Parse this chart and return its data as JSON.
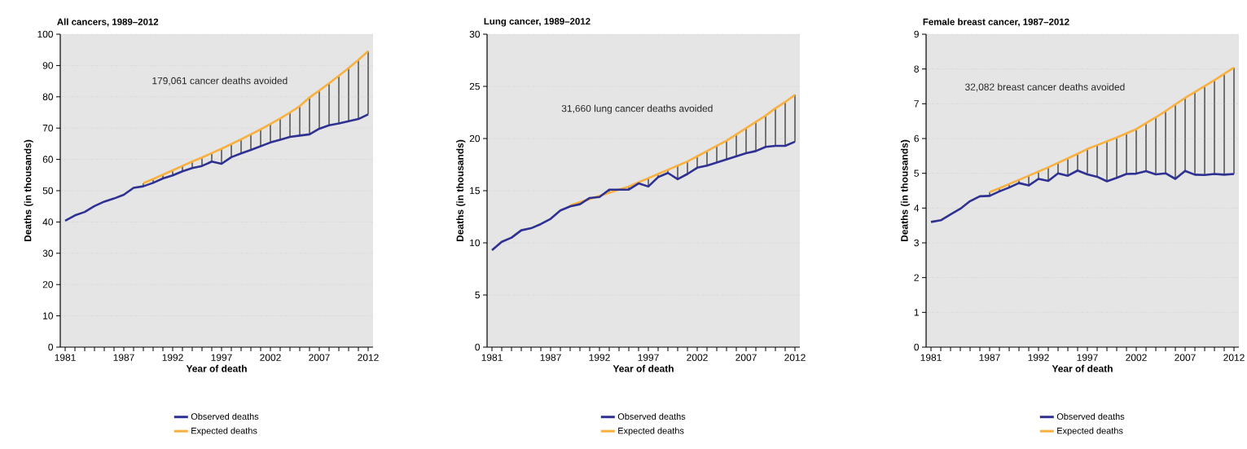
{
  "chart_data": [
    {
      "type": "line",
      "title": "All cancers, 1989–2012",
      "xlabel": "Year of death",
      "ylabel": "Deaths (in thousands)",
      "x": [
        1981,
        1982,
        1983,
        1984,
        1985,
        1986,
        1987,
        1988,
        1989,
        1990,
        1991,
        1992,
        1993,
        1994,
        1995,
        1996,
        1997,
        1998,
        1999,
        2000,
        2001,
        2002,
        2003,
        2004,
        2005,
        2006,
        2007,
        2008,
        2009,
        2010,
        2011,
        2012
      ],
      "series": [
        {
          "name": "Observed deaths",
          "color": "#2e3192",
          "values": [
            40.4,
            42.1,
            43.2,
            45.1,
            46.5,
            47.5,
            48.7,
            50.9,
            51.4,
            52.5,
            53.9,
            54.9,
            56.2,
            57.2,
            57.9,
            59.3,
            58.6,
            60.7,
            61.9,
            63.0,
            64.2,
            65.4,
            66.3,
            67.2,
            67.6,
            68.0,
            69.8,
            70.9,
            71.5,
            72.2,
            72.9,
            74.4
          ]
        },
        {
          "name": "Expected deaths",
          "color": "#f9b03f",
          "values": [
            null,
            null,
            null,
            null,
            null,
            null,
            null,
            null,
            52.4,
            53.7,
            55.1,
            56.5,
            57.9,
            59.3,
            60.6,
            62.0,
            63.4,
            64.9,
            66.4,
            68.0,
            69.6,
            71.3,
            73.1,
            75.0,
            77.0,
            79.8,
            82.0,
            84.3,
            86.7,
            89.2,
            91.8,
            94.6
          ]
        }
      ],
      "annotations": [
        "179,061 cancer deaths avoided"
      ],
      "xlim": [
        1980.5,
        2012.5
      ],
      "ylim": [
        0,
        100
      ],
      "yticks": [
        0,
        10,
        20,
        30,
        40,
        50,
        60,
        70,
        80,
        90,
        100
      ],
      "xticks": [
        1981,
        {
          "value": 1982,
          "label": null
        },
        {
          "value": 1983,
          "label": null
        },
        {
          "value": 1984,
          "label": null
        },
        {
          "value": 1985,
          "label": null
        },
        {
          "value": 1986,
          "label": null
        },
        1987,
        {
          "value": 1988,
          "label": null
        },
        {
          "value": 1989,
          "label": null
        },
        {
          "value": 1990,
          "label": null
        },
        {
          "value": 1991,
          "label": null
        },
        1992,
        {
          "value": 1993,
          "label": null
        },
        {
          "value": 1994,
          "label": null
        },
        {
          "value": 1995,
          "label": null
        },
        {
          "value": 1996,
          "label": null
        },
        1997,
        {
          "value": 1998,
          "label": null
        },
        {
          "value": 1999,
          "label": null
        },
        {
          "value": 2000,
          "label": null
        },
        {
          "value": 2001,
          "label": null
        },
        2002,
        {
          "value": 2003,
          "label": null
        },
        {
          "value": 2004,
          "label": null
        },
        {
          "value": 2005,
          "label": null
        },
        {
          "value": 2006,
          "label": null
        },
        2007,
        {
          "value": 2008,
          "label": null
        },
        {
          "value": 2009,
          "label": null
        },
        {
          "value": 2010,
          "label": null
        },
        {
          "value": 2011,
          "label": null
        },
        2012
      ],
      "grid": "y",
      "legend": "bottom",
      "marker": "none",
      "line_style": "solid"
    },
    {
      "type": "line",
      "title": "Lung cancer, 1989–2012",
      "xlabel": "Year of death",
      "ylabel": "Deaths (in thousands)",
      "x": [
        1981,
        1982,
        1983,
        1984,
        1985,
        1986,
        1987,
        1988,
        1989,
        1990,
        1991,
        1992,
        1993,
        1994,
        1995,
        1996,
        1997,
        1998,
        1999,
        2000,
        2001,
        2002,
        2003,
        2004,
        2005,
        2006,
        2007,
        2008,
        2009,
        2010,
        2011,
        2012
      ],
      "series": [
        {
          "name": "Observed deaths",
          "color": "#2e3192",
          "values": [
            9.3,
            10.1,
            10.5,
            11.2,
            11.4,
            11.8,
            12.3,
            13.1,
            13.5,
            13.7,
            14.3,
            14.4,
            15.1,
            15.1,
            15.1,
            15.7,
            15.4,
            16.3,
            16.7,
            16.1,
            16.6,
            17.2,
            17.4,
            17.7,
            18.0,
            18.3,
            18.6,
            18.8,
            19.2,
            19.3,
            19.3,
            19.7
          ]
        },
        {
          "name": "Expected deaths",
          "color": "#f9b03f",
          "values": [
            null,
            null,
            null,
            null,
            null,
            null,
            null,
            null,
            13.6,
            13.9,
            14.2,
            14.5,
            14.8,
            15.1,
            15.4,
            15.8,
            16.2,
            16.6,
            17.0,
            17.4,
            17.8,
            18.3,
            18.8,
            19.3,
            19.8,
            20.4,
            21.0,
            21.6,
            22.2,
            22.9,
            23.5,
            24.2
          ]
        }
      ],
      "annotations": [
        "31,660 lung cancer deaths avoided"
      ],
      "xlim": [
        1980.5,
        2012.5
      ],
      "ylim": [
        0,
        30
      ],
      "yticks": [
        0,
        5,
        10,
        15,
        20,
        25,
        30
      ],
      "xticks": [
        1981,
        {
          "value": 1982,
          "label": null
        },
        {
          "value": 1983,
          "label": null
        },
        {
          "value": 1984,
          "label": null
        },
        {
          "value": 1985,
          "label": null
        },
        {
          "value": 1986,
          "label": null
        },
        1987,
        {
          "value": 1988,
          "label": null
        },
        {
          "value": 1989,
          "label": null
        },
        {
          "value": 1990,
          "label": null
        },
        {
          "value": 1991,
          "label": null
        },
        1992,
        {
          "value": 1993,
          "label": null
        },
        {
          "value": 1994,
          "label": null
        },
        {
          "value": 1995,
          "label": null
        },
        {
          "value": 1996,
          "label": null
        },
        1997,
        {
          "value": 1998,
          "label": null
        },
        {
          "value": 1999,
          "label": null
        },
        {
          "value": 2000,
          "label": null
        },
        {
          "value": 2001,
          "label": null
        },
        2002,
        {
          "value": 2003,
          "label": null
        },
        {
          "value": 2004,
          "label": null
        },
        {
          "value": 2005,
          "label": null
        },
        {
          "value": 2006,
          "label": null
        },
        2007,
        {
          "value": 2008,
          "label": null
        },
        {
          "value": 2009,
          "label": null
        },
        {
          "value": 2010,
          "label": null
        },
        {
          "value": 2011,
          "label": null
        },
        2012
      ],
      "grid": "y",
      "legend": "bottom",
      "marker": "none",
      "line_style": "solid"
    },
    {
      "type": "line",
      "title": "Female breast cancer, 1987–2012",
      "xlabel": "Year of death",
      "ylabel": "Deaths (in thousands)",
      "x": [
        1981,
        1982,
        1983,
        1984,
        1985,
        1986,
        1987,
        1988,
        1989,
        1990,
        1991,
        1992,
        1993,
        1994,
        1995,
        1996,
        1997,
        1998,
        1999,
        2000,
        2001,
        2002,
        2003,
        2004,
        2005,
        2006,
        2007,
        2008,
        2009,
        2010,
        2011,
        2012
      ],
      "series": [
        {
          "name": "Observed deaths",
          "color": "#2e3192",
          "values": [
            3.6,
            3.65,
            3.82,
            3.98,
            4.2,
            4.34,
            4.35,
            4.48,
            4.59,
            4.72,
            4.65,
            4.84,
            4.78,
            5.0,
            4.93,
            5.08,
            4.97,
            4.9,
            4.77,
            4.87,
            4.98,
            4.99,
            5.06,
            4.97,
            5.0,
            4.84,
            5.07,
            4.96,
            4.95,
            4.98,
            4.96,
            4.98
          ]
        },
        {
          "name": "Expected deaths",
          "color": "#f9b03f",
          "values": [
            null,
            null,
            null,
            null,
            null,
            null,
            4.46,
            4.57,
            4.69,
            4.81,
            4.93,
            5.05,
            5.17,
            5.3,
            5.43,
            5.56,
            5.7,
            5.81,
            5.92,
            6.03,
            6.15,
            6.27,
            6.44,
            6.61,
            6.79,
            6.98,
            7.17,
            7.34,
            7.51,
            7.68,
            7.86,
            8.04
          ]
        }
      ],
      "annotations": [
        "32,082 breast cancer deaths avoided"
      ],
      "xlim": [
        1980.5,
        2012.5
      ],
      "ylim": [
        0,
        9
      ],
      "yticks": [
        0,
        1,
        2,
        3,
        4,
        5,
        6,
        7,
        8,
        9
      ],
      "xticks": [
        1981,
        {
          "value": 1982,
          "label": null
        },
        {
          "value": 1983,
          "label": null
        },
        {
          "value": 1984,
          "label": null
        },
        {
          "value": 1985,
          "label": null
        },
        {
          "value": 1986,
          "label": null
        },
        1987,
        {
          "value": 1988,
          "label": null
        },
        {
          "value": 1989,
          "label": null
        },
        {
          "value": 1990,
          "label": null
        },
        {
          "value": 1991,
          "label": null
        },
        1992,
        {
          "value": 1993,
          "label": null
        },
        {
          "value": 1994,
          "label": null
        },
        {
          "value": 1995,
          "label": null
        },
        {
          "value": 1996,
          "label": null
        },
        1997,
        {
          "value": 1998,
          "label": null
        },
        {
          "value": 1999,
          "label": null
        },
        {
          "value": 2000,
          "label": null
        },
        {
          "value": 2001,
          "label": null
        },
        2002,
        {
          "value": 2003,
          "label": null
        },
        {
          "value": 2004,
          "label": null
        },
        {
          "value": 2005,
          "label": null
        },
        {
          "value": 2006,
          "label": null
        },
        2007,
        {
          "value": 2008,
          "label": null
        },
        {
          "value": 2009,
          "label": null
        },
        {
          "value": 2010,
          "label": null
        },
        {
          "value": 2011,
          "label": null
        },
        2012
      ],
      "grid": "y",
      "legend": "bottom",
      "marker": "none",
      "line_style": "solid"
    }
  ]
}
